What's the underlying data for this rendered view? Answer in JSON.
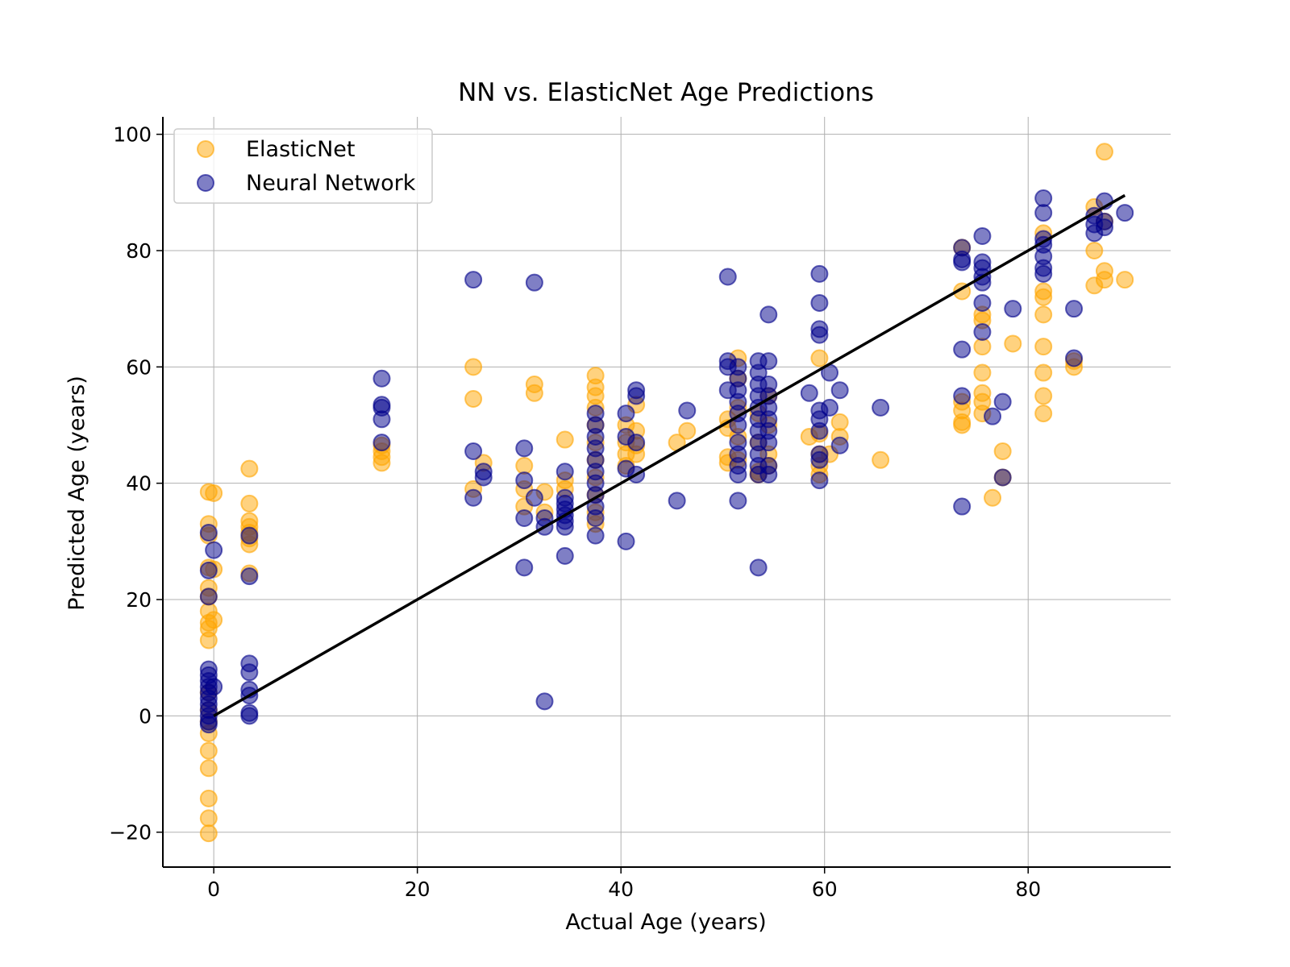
{
  "chart_data": {
    "type": "scatter",
    "title": "NN vs. ElasticNet Age Predictions",
    "xlabel": "Actual Age (years)",
    "ylabel": "Predicted Age (years)",
    "xlim": [
      -5,
      94
    ],
    "ylim": [
      -26,
      103
    ],
    "xticks": [
      0,
      20,
      40,
      60,
      80
    ],
    "yticks": [
      -20,
      0,
      20,
      40,
      60,
      80,
      100
    ],
    "grid": true,
    "legend_position": "top-left",
    "identity_line": {
      "from": [
        0,
        0
      ],
      "to": [
        89.5,
        89.5
      ],
      "color": "#000000"
    },
    "series": [
      {
        "name": "ElasticNet",
        "color": "#ffa500",
        "points": [
          [
            -0.5,
            38.5
          ],
          [
            0,
            38.3
          ],
          [
            -0.5,
            33
          ],
          [
            -0.5,
            31
          ],
          [
            -0.5,
            25.5
          ],
          [
            0,
            25.2
          ],
          [
            -0.5,
            22
          ],
          [
            -0.5,
            20.5
          ],
          [
            -0.5,
            18
          ],
          [
            -0.5,
            16
          ],
          [
            0,
            16.5
          ],
          [
            -0.5,
            15
          ],
          [
            -0.5,
            13
          ],
          [
            -0.5,
            4
          ],
          [
            -0.5,
            1
          ],
          [
            -0.5,
            -1
          ],
          [
            -0.5,
            -3
          ],
          [
            -0.5,
            -6
          ],
          [
            -0.5,
            -9
          ],
          [
            -0.5,
            -14.2
          ],
          [
            -0.5,
            -17.6
          ],
          [
            -0.5,
            -20.2
          ],
          [
            3.5,
            42.5
          ],
          [
            3.5,
            36.5
          ],
          [
            3.5,
            33.5
          ],
          [
            3.5,
            32.5
          ],
          [
            3.5,
            31.5
          ],
          [
            3.5,
            30.5
          ],
          [
            3.5,
            29.5
          ],
          [
            3.5,
            24.5
          ],
          [
            16.5,
            46.5
          ],
          [
            16.5,
            45.5
          ],
          [
            16.5,
            44.5
          ],
          [
            16.5,
            43.5
          ],
          [
            25.5,
            60
          ],
          [
            25.5,
            54.5
          ],
          [
            25.5,
            39
          ],
          [
            26.5,
            43.5
          ],
          [
            31.5,
            57
          ],
          [
            31.5,
            55.5
          ],
          [
            30.5,
            43
          ],
          [
            30.5,
            39
          ],
          [
            30.5,
            36
          ],
          [
            32.5,
            38.5
          ],
          [
            32.5,
            35
          ],
          [
            34.5,
            47.5
          ],
          [
            34.5,
            40.5
          ],
          [
            34.5,
            39
          ],
          [
            37.5,
            58.5
          ],
          [
            37.5,
            56.5
          ],
          [
            37.5,
            55
          ],
          [
            37.5,
            53
          ],
          [
            37.5,
            50
          ],
          [
            37.5,
            47
          ],
          [
            37.5,
            44
          ],
          [
            37.5,
            41
          ],
          [
            37.5,
            38
          ],
          [
            37.5,
            35
          ],
          [
            37.5,
            33
          ],
          [
            40.5,
            50
          ],
          [
            40.5,
            47
          ],
          [
            40.5,
            45
          ],
          [
            40.5,
            43
          ],
          [
            41.5,
            53.5
          ],
          [
            41.5,
            49
          ],
          [
            41.5,
            46.5
          ],
          [
            41.5,
            45
          ],
          [
            45.5,
            47
          ],
          [
            46.5,
            49
          ],
          [
            50.5,
            51
          ],
          [
            50.5,
            49.5
          ],
          [
            50.5,
            44.5
          ],
          [
            50.5,
            43.5
          ],
          [
            51.5,
            61.5
          ],
          [
            51.5,
            58
          ],
          [
            51.5,
            53
          ],
          [
            51.5,
            48
          ],
          [
            51.5,
            44
          ],
          [
            53.5,
            52
          ],
          [
            53.5,
            47
          ],
          [
            53.5,
            42
          ],
          [
            53.5,
            41.5
          ],
          [
            54.5,
            55
          ],
          [
            54.5,
            50
          ],
          [
            54.5,
            45
          ],
          [
            54.5,
            43
          ],
          [
            58.5,
            48
          ],
          [
            59.5,
            61.5
          ],
          [
            59.5,
            48.5
          ],
          [
            59.5,
            45
          ],
          [
            59.5,
            43
          ],
          [
            59.5,
            41.5
          ],
          [
            60.5,
            45
          ],
          [
            61.5,
            50.5
          ],
          [
            61.5,
            48
          ],
          [
            65.5,
            44
          ],
          [
            73.5,
            80.5
          ],
          [
            73.5,
            73
          ],
          [
            73.5,
            54
          ],
          [
            73.5,
            52.5
          ],
          [
            73.5,
            50.5
          ],
          [
            73.5,
            50
          ],
          [
            75.5,
            69
          ],
          [
            75.5,
            68
          ],
          [
            75.5,
            63.5
          ],
          [
            75.5,
            59
          ],
          [
            75.5,
            55.5
          ],
          [
            75.5,
            54
          ],
          [
            75.5,
            52
          ],
          [
            76.5,
            37.5
          ],
          [
            77.5,
            45.5
          ],
          [
            77.5,
            41
          ],
          [
            78.5,
            64
          ],
          [
            81.5,
            83
          ],
          [
            81.5,
            73
          ],
          [
            81.5,
            72
          ],
          [
            81.5,
            69
          ],
          [
            81.5,
            63.5
          ],
          [
            81.5,
            59
          ],
          [
            81.5,
            55
          ],
          [
            81.5,
            52
          ],
          [
            84.5,
            61
          ],
          [
            84.5,
            60
          ],
          [
            86.5,
            87.5
          ],
          [
            86.5,
            80
          ],
          [
            86.5,
            74
          ],
          [
            87.5,
            97
          ],
          [
            87.5,
            76.5
          ],
          [
            87.5,
            75
          ],
          [
            87.5,
            85
          ],
          [
            89.5,
            75
          ]
        ]
      },
      {
        "name": "Neural Network",
        "color": "#00008b",
        "points": [
          [
            -0.5,
            31.5
          ],
          [
            0,
            28.5
          ],
          [
            -0.5,
            25
          ],
          [
            -0.5,
            20.5
          ],
          [
            -0.5,
            8
          ],
          [
            -0.5,
            7
          ],
          [
            -0.5,
            6
          ],
          [
            -0.5,
            5
          ],
          [
            0,
            5
          ],
          [
            -0.5,
            4
          ],
          [
            -0.5,
            3
          ],
          [
            -0.5,
            2
          ],
          [
            -0.5,
            1
          ],
          [
            -0.5,
            0
          ],
          [
            -0.5,
            -1
          ],
          [
            -0.5,
            -1.5
          ],
          [
            3.5,
            31
          ],
          [
            3.5,
            24
          ],
          [
            3.5,
            9
          ],
          [
            3.5,
            7.5
          ],
          [
            3.5,
            4.5
          ],
          [
            3.5,
            3.5
          ],
          [
            3.5,
            0.5
          ],
          [
            3.5,
            0
          ],
          [
            16.5,
            58
          ],
          [
            16.5,
            53.5
          ],
          [
            16.5,
            53
          ],
          [
            16.5,
            51
          ],
          [
            16.5,
            47
          ],
          [
            25.5,
            75
          ],
          [
            25.5,
            45.5
          ],
          [
            25.5,
            37.5
          ],
          [
            26.5,
            42
          ],
          [
            26.5,
            41
          ],
          [
            31.5,
            74.5
          ],
          [
            30.5,
            46
          ],
          [
            30.5,
            40.5
          ],
          [
            30.5,
            34
          ],
          [
            30.5,
            25.5
          ],
          [
            31.5,
            37.5
          ],
          [
            32.5,
            34
          ],
          [
            32.5,
            32.5
          ],
          [
            32.5,
            2.5
          ],
          [
            34.5,
            42
          ],
          [
            34.5,
            37.5
          ],
          [
            34.5,
            36.5
          ],
          [
            34.5,
            35.5
          ],
          [
            34.5,
            34.5
          ],
          [
            34.5,
            33.5
          ],
          [
            34.5,
            32.5
          ],
          [
            34.5,
            27.5
          ],
          [
            37.5,
            52
          ],
          [
            37.5,
            50
          ],
          [
            37.5,
            48
          ],
          [
            37.5,
            46
          ],
          [
            37.5,
            44
          ],
          [
            37.5,
            42
          ],
          [
            37.5,
            40
          ],
          [
            37.5,
            38
          ],
          [
            37.5,
            36
          ],
          [
            37.5,
            34
          ],
          [
            37.5,
            31
          ],
          [
            40.5,
            52
          ],
          [
            40.5,
            48
          ],
          [
            40.5,
            42.5
          ],
          [
            40.5,
            30
          ],
          [
            41.5,
            56
          ],
          [
            41.5,
            55
          ],
          [
            41.5,
            47
          ],
          [
            41.5,
            41.5
          ],
          [
            45.5,
            37
          ],
          [
            46.5,
            52.5
          ],
          [
            50.5,
            75.5
          ],
          [
            50.5,
            61
          ],
          [
            50.5,
            60
          ],
          [
            50.5,
            56
          ],
          [
            51.5,
            60
          ],
          [
            51.5,
            58
          ],
          [
            51.5,
            56
          ],
          [
            51.5,
            54
          ],
          [
            51.5,
            52
          ],
          [
            51.5,
            50
          ],
          [
            51.5,
            47
          ],
          [
            51.5,
            45
          ],
          [
            51.5,
            43
          ],
          [
            51.5,
            41.5
          ],
          [
            51.5,
            37
          ],
          [
            53.5,
            61
          ],
          [
            53.5,
            59
          ],
          [
            53.5,
            57
          ],
          [
            53.5,
            55
          ],
          [
            53.5,
            53
          ],
          [
            53.5,
            51
          ],
          [
            53.5,
            49
          ],
          [
            53.5,
            47
          ],
          [
            53.5,
            45
          ],
          [
            53.5,
            43
          ],
          [
            53.5,
            41.5
          ],
          [
            53.5,
            25.5
          ],
          [
            54.5,
            69
          ],
          [
            54.5,
            61
          ],
          [
            54.5,
            57
          ],
          [
            54.5,
            55
          ],
          [
            54.5,
            53
          ],
          [
            54.5,
            51
          ],
          [
            54.5,
            49
          ],
          [
            54.5,
            47
          ],
          [
            54.5,
            43
          ],
          [
            54.5,
            41.5
          ],
          [
            58.5,
            55.5
          ],
          [
            59.5,
            76
          ],
          [
            59.5,
            71
          ],
          [
            59.5,
            66.5
          ],
          [
            59.5,
            65.5
          ],
          [
            59.5,
            52.5
          ],
          [
            59.5,
            51
          ],
          [
            59.5,
            49
          ],
          [
            59.5,
            45
          ],
          [
            59.5,
            44
          ],
          [
            59.5,
            40.5
          ],
          [
            60.5,
            59
          ],
          [
            60.5,
            53
          ],
          [
            61.5,
            56
          ],
          [
            61.5,
            46.5
          ],
          [
            65.5,
            53
          ],
          [
            73.5,
            80.5
          ],
          [
            73.5,
            78.5
          ],
          [
            73.5,
            78
          ],
          [
            73.5,
            63
          ],
          [
            73.5,
            55
          ],
          [
            73.5,
            36
          ],
          [
            75.5,
            82.5
          ],
          [
            75.5,
            78
          ],
          [
            75.5,
            77
          ],
          [
            75.5,
            75.5
          ],
          [
            75.5,
            74.5
          ],
          [
            75.5,
            71
          ],
          [
            75.5,
            66
          ],
          [
            76.5,
            51.5
          ],
          [
            77.5,
            54
          ],
          [
            77.5,
            41
          ],
          [
            78.5,
            70
          ],
          [
            81.5,
            89
          ],
          [
            81.5,
            86.5
          ],
          [
            81.5,
            82
          ],
          [
            81.5,
            81
          ],
          [
            81.5,
            79
          ],
          [
            81.5,
            77
          ],
          [
            81.5,
            76
          ],
          [
            84.5,
            70
          ],
          [
            84.5,
            61.5
          ],
          [
            86.5,
            86
          ],
          [
            86.5,
            84.5
          ],
          [
            86.5,
            83
          ],
          [
            87.5,
            88.5
          ],
          [
            87.5,
            85
          ],
          [
            87.5,
            84
          ],
          [
            89.5,
            86.5
          ]
        ]
      }
    ]
  }
}
